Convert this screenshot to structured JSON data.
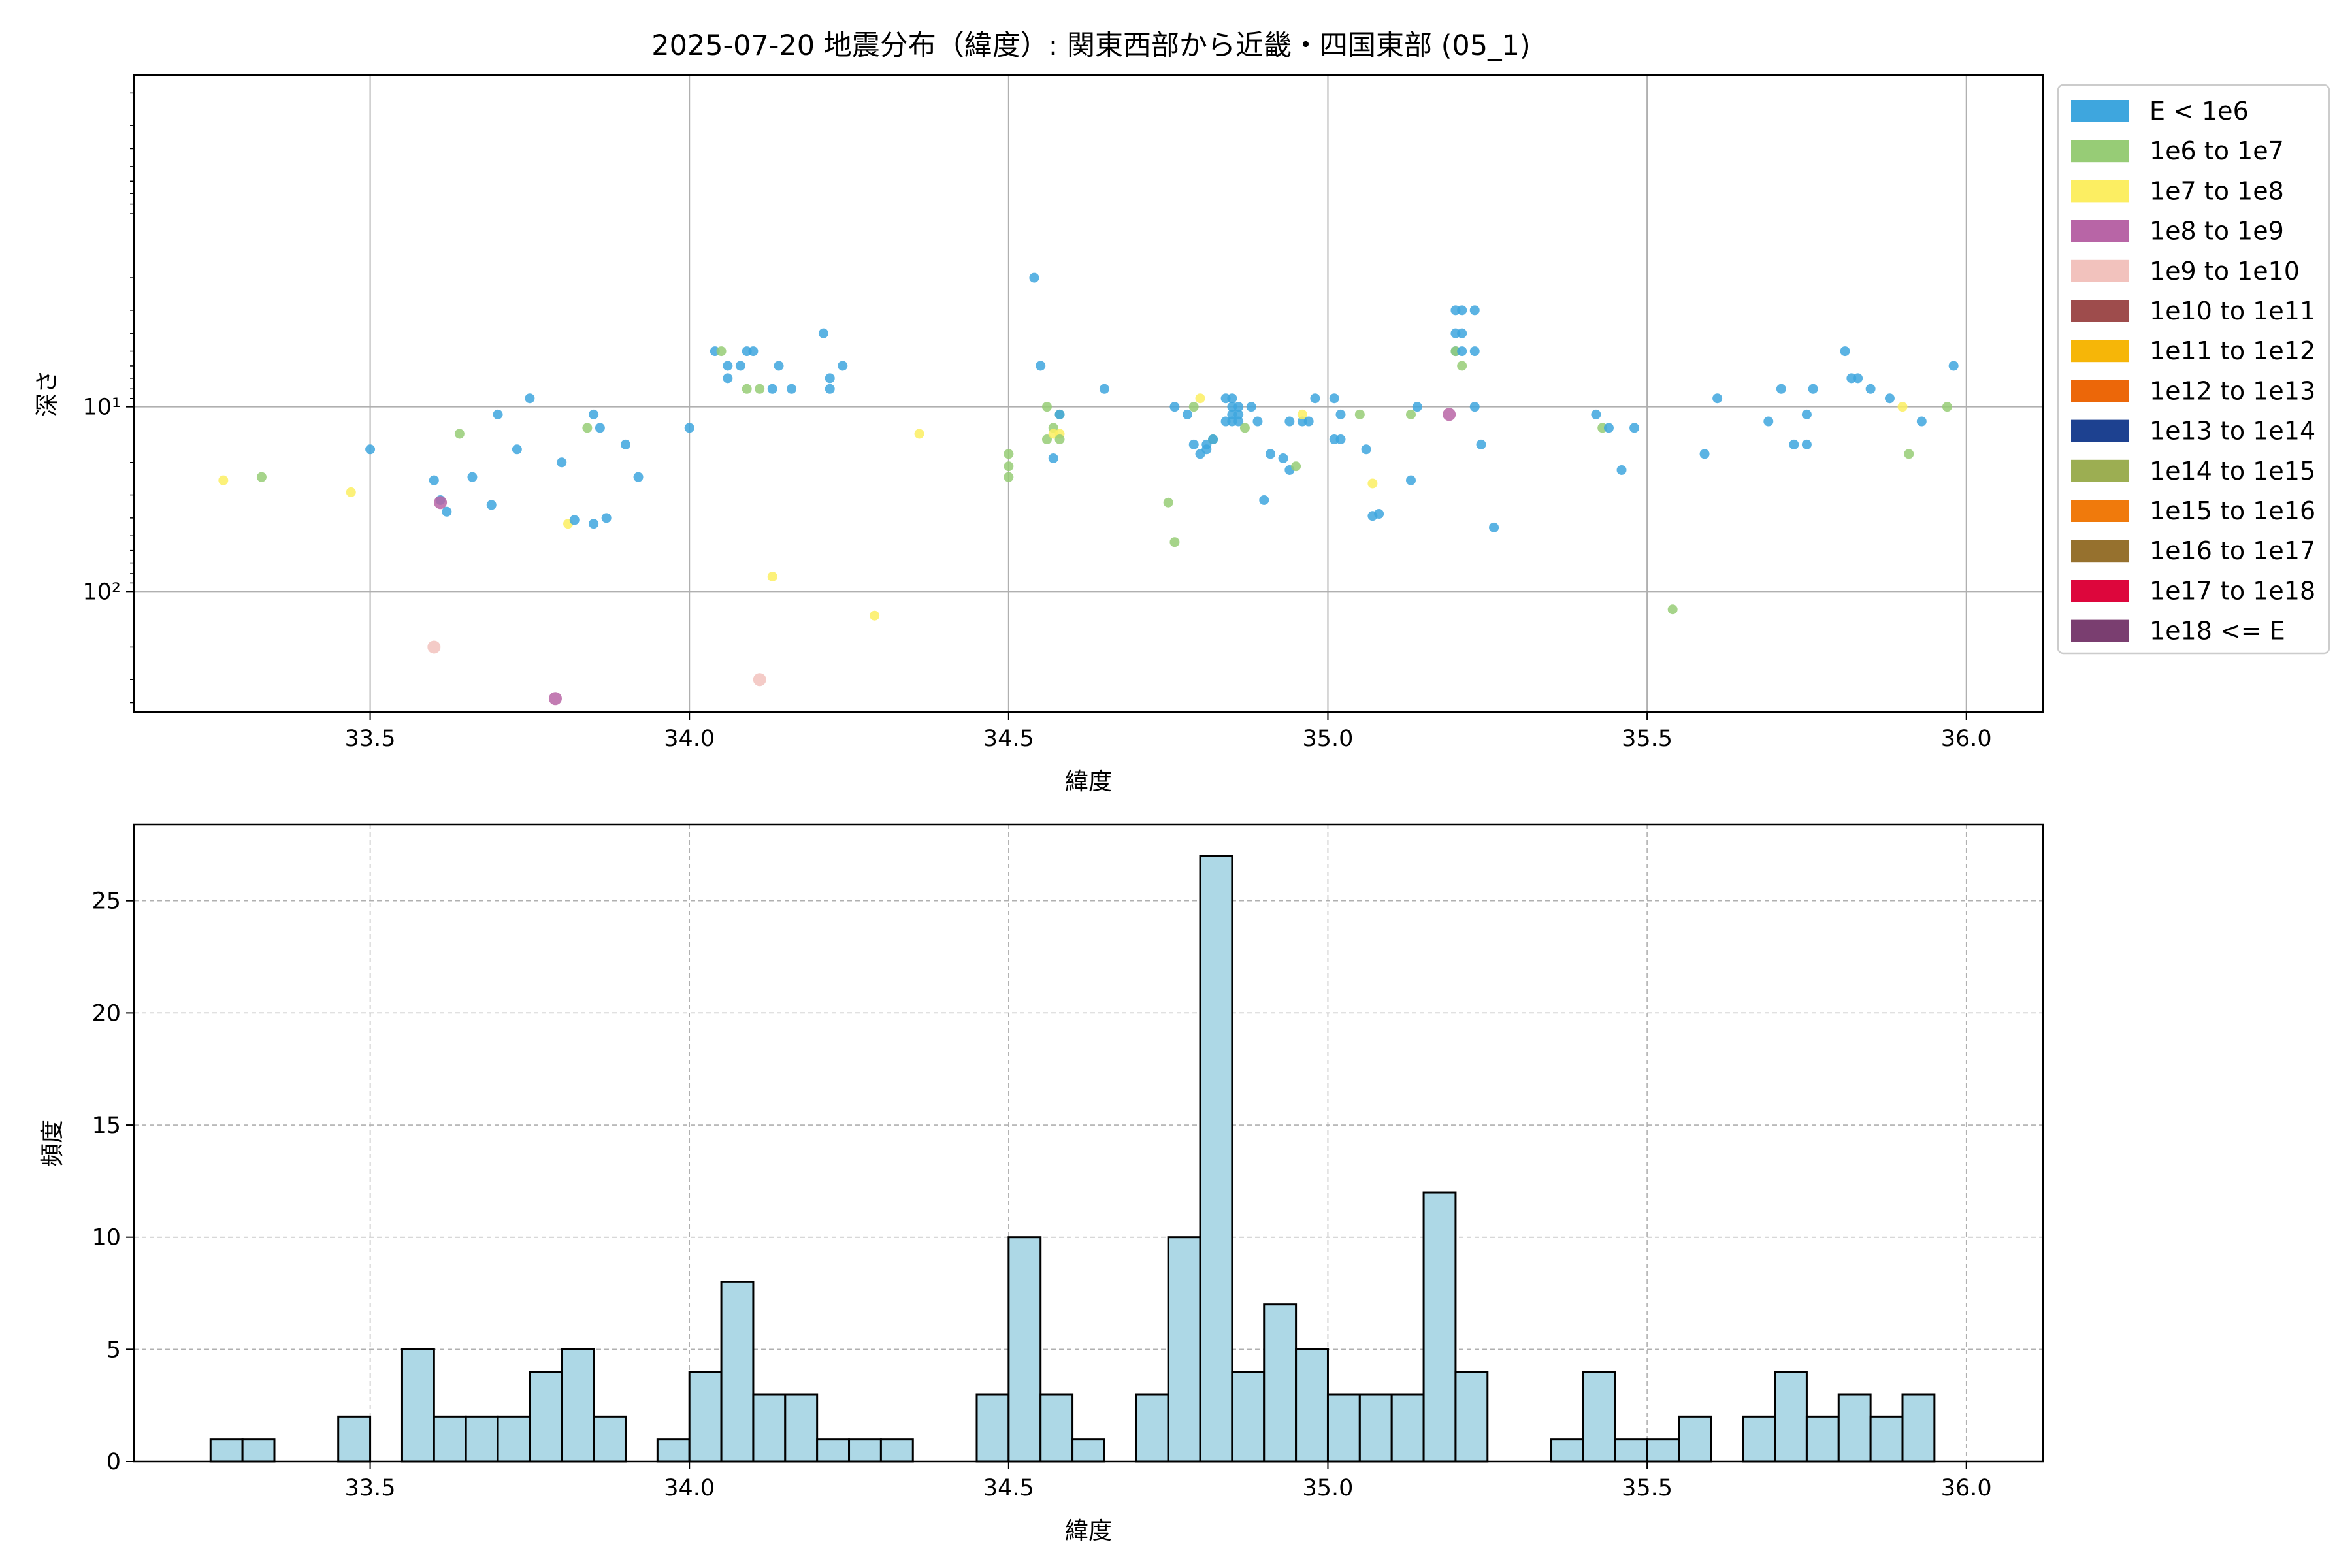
{
  "figure": {
    "title": "2025-07-20 地震分布（緯度）: 関東西部から近畿・四国東部 (05_1)"
  },
  "chart_data": [
    {
      "type": "scatter",
      "xlabel": "緯度",
      "ylabel": "深さ",
      "xlim": [
        33.13,
        36.12
      ],
      "ylim": [
        450,
        0.16
      ],
      "y_scale": "log",
      "y_inverted": true,
      "grid": true,
      "x_ticks": [
        33.5,
        34.0,
        34.5,
        35.0,
        35.5,
        36.0
      ],
      "x_tick_labels": [
        "33.5",
        "34.0",
        "34.5",
        "35.0",
        "35.5",
        "36.0"
      ],
      "y_ticks": [
        10,
        100
      ],
      "y_tick_labels": [
        "10¹",
        "10²"
      ],
      "legend_position": "outside-right",
      "legend": [
        {
          "label": "E < 1e6",
          "color": "#3ea6de"
        },
        {
          "label": "1e6 to 1e7",
          "color": "#97cc76"
        },
        {
          "label": "1e7 to 1e8",
          "color": "#fcee62"
        },
        {
          "label": "1e8 to 1e9",
          "color": "#b865a6"
        },
        {
          "label": "1e9 to 1e10",
          "color": "#f2c2bd"
        },
        {
          "label": "1e10 to 1e11",
          "color": "#9e4c4c"
        },
        {
          "label": "1e11 to 1e12",
          "color": "#f6b608"
        },
        {
          "label": "1e12 to 1e13",
          "color": "#ec6709"
        },
        {
          "label": "1e13 to 1e14",
          "color": "#1d4190"
        },
        {
          "label": "1e14 to 1e15",
          "color": "#9cae52"
        },
        {
          "label": "1e15 to 1e16",
          "color": "#f07a0c"
        },
        {
          "label": "1e16 to 1e17",
          "color": "#96712e"
        },
        {
          "label": "1e17 to 1e18",
          "color": "#dd063c"
        },
        {
          "label": "1e18 <= E",
          "color": "#7a3e70"
        }
      ],
      "points": [
        [
          33.27,
          25,
          2
        ],
        [
          33.33,
          24,
          1
        ],
        [
          33.47,
          29,
          2
        ],
        [
          33.5,
          17,
          0
        ],
        [
          33.6,
          25,
          0
        ],
        [
          33.61,
          32,
          0
        ],
        [
          33.61,
          33,
          3
        ],
        [
          33.62,
          37,
          0
        ],
        [
          33.64,
          14,
          1
        ],
        [
          33.66,
          24,
          0
        ],
        [
          33.69,
          34,
          0
        ],
        [
          33.7,
          11,
          0
        ],
        [
          33.73,
          17,
          0
        ],
        [
          33.75,
          9,
          0
        ],
        [
          33.8,
          20,
          0
        ],
        [
          33.81,
          43,
          2
        ],
        [
          33.82,
          41,
          0
        ],
        [
          33.84,
          13,
          1
        ],
        [
          33.85,
          11,
          0
        ],
        [
          33.85,
          43,
          0
        ],
        [
          33.86,
          13,
          0
        ],
        [
          33.87,
          40,
          0
        ],
        [
          33.9,
          16,
          0
        ],
        [
          33.92,
          24,
          0
        ],
        [
          34.0,
          13,
          0
        ],
        [
          34.04,
          5,
          0
        ],
        [
          34.05,
          5,
          1
        ],
        [
          34.06,
          6,
          0
        ],
        [
          34.06,
          7,
          0
        ],
        [
          34.08,
          6,
          0
        ],
        [
          34.09,
          5,
          0
        ],
        [
          34.09,
          8,
          1
        ],
        [
          34.1,
          5,
          0
        ],
        [
          34.11,
          8,
          1
        ],
        [
          34.13,
          8,
          0
        ],
        [
          34.14,
          6,
          0
        ],
        [
          34.16,
          8,
          0
        ],
        [
          34.21,
          4,
          0
        ],
        [
          34.22,
          7,
          0
        ],
        [
          34.22,
          8,
          0
        ],
        [
          34.24,
          6,
          0
        ],
        [
          34.36,
          14,
          2
        ],
        [
          34.5,
          18,
          1
        ],
        [
          34.5,
          21,
          1
        ],
        [
          34.5,
          24,
          1
        ],
        [
          34.54,
          2,
          0
        ],
        [
          34.55,
          6,
          0
        ],
        [
          34.56,
          10,
          1
        ],
        [
          34.56,
          15,
          1
        ],
        [
          34.57,
          13,
          1
        ],
        [
          34.57,
          14,
          2
        ],
        [
          34.57,
          19,
          0
        ],
        [
          34.58,
          11,
          1
        ],
        [
          34.58,
          11,
          0
        ],
        [
          34.58,
          14,
          2
        ],
        [
          34.58,
          15,
          1
        ],
        [
          34.65,
          8,
          0
        ],
        [
          34.75,
          33,
          1
        ],
        [
          34.76,
          10,
          0
        ],
        [
          34.76,
          54,
          1
        ],
        [
          34.78,
          11,
          0
        ],
        [
          34.79,
          16,
          0
        ],
        [
          34.79,
          10,
          1
        ],
        [
          34.8,
          9,
          2
        ],
        [
          34.8,
          18,
          0
        ],
        [
          34.81,
          17,
          0
        ],
        [
          34.81,
          16,
          0
        ],
        [
          34.82,
          15,
          1
        ],
        [
          34.82,
          15,
          0
        ],
        [
          34.84,
          12,
          0
        ],
        [
          34.84,
          9,
          0
        ],
        [
          34.85,
          9,
          0
        ],
        [
          34.85,
          10,
          0
        ],
        [
          34.85,
          11,
          0
        ],
        [
          34.85,
          12,
          0
        ],
        [
          34.86,
          10,
          0
        ],
        [
          34.86,
          11,
          0
        ],
        [
          34.86,
          12,
          0
        ],
        [
          34.87,
          13,
          1
        ],
        [
          34.88,
          10,
          0
        ],
        [
          34.89,
          12,
          0
        ],
        [
          34.9,
          32,
          0
        ],
        [
          34.91,
          18,
          0
        ],
        [
          34.93,
          19,
          0
        ],
        [
          34.94,
          12,
          0
        ],
        [
          34.94,
          22,
          0
        ],
        [
          34.95,
          21,
          1
        ],
        [
          34.96,
          12,
          0
        ],
        [
          34.96,
          11,
          2
        ],
        [
          34.97,
          12,
          0
        ],
        [
          34.98,
          9,
          0
        ],
        [
          35.01,
          9,
          0
        ],
        [
          35.01,
          15,
          0
        ],
        [
          35.02,
          11,
          0
        ],
        [
          35.02,
          15,
          0
        ],
        [
          35.05,
          11,
          1
        ],
        [
          35.06,
          17,
          0
        ],
        [
          35.07,
          26,
          2
        ],
        [
          35.07,
          39,
          0
        ],
        [
          35.08,
          38,
          0
        ],
        [
          35.13,
          11,
          1
        ],
        [
          35.13,
          25,
          0
        ],
        [
          35.14,
          10,
          0
        ],
        [
          35.19,
          11,
          3
        ],
        [
          35.2,
          3,
          0
        ],
        [
          35.2,
          4,
          0
        ],
        [
          35.2,
          5,
          0
        ],
        [
          35.2,
          5,
          1
        ],
        [
          35.21,
          3,
          0
        ],
        [
          35.21,
          4,
          0
        ],
        [
          35.21,
          5,
          0
        ],
        [
          35.21,
          6,
          1
        ],
        [
          35.23,
          3,
          0
        ],
        [
          35.23,
          5,
          0
        ],
        [
          35.23,
          10,
          0
        ],
        [
          35.24,
          16,
          0
        ],
        [
          35.26,
          45,
          0
        ],
        [
          35.42,
          11,
          0
        ],
        [
          35.43,
          13,
          1
        ],
        [
          35.44,
          13,
          0
        ],
        [
          35.46,
          22,
          0
        ],
        [
          35.48,
          13,
          0
        ],
        [
          35.54,
          125,
          1
        ],
        [
          35.59,
          18,
          0
        ],
        [
          35.61,
          9,
          0
        ],
        [
          35.69,
          12,
          0
        ],
        [
          35.71,
          8,
          0
        ],
        [
          35.73,
          16,
          0
        ],
        [
          35.75,
          16,
          0
        ],
        [
          35.75,
          11,
          0
        ],
        [
          35.76,
          8,
          0
        ],
        [
          35.81,
          5,
          0
        ],
        [
          35.82,
          7,
          0
        ],
        [
          35.83,
          7,
          0
        ],
        [
          35.85,
          8,
          0
        ],
        [
          35.88,
          9,
          0
        ],
        [
          35.9,
          10,
          2
        ],
        [
          35.91,
          18,
          1
        ],
        [
          35.93,
          12,
          0
        ],
        [
          35.97,
          10,
          1
        ],
        [
          35.98,
          6,
          0
        ],
        [
          33.6,
          200,
          4
        ],
        [
          33.79,
          380,
          3
        ],
        [
          34.11,
          300,
          4
        ],
        [
          34.13,
          83,
          2
        ],
        [
          34.29,
          135,
          2
        ]
      ]
    },
    {
      "type": "bar",
      "xlabel": "緯度",
      "ylabel": "頻度",
      "xlim": [
        33.13,
        36.12
      ],
      "ylim": [
        0,
        28.4
      ],
      "grid": true,
      "grid_style": "dashed",
      "bar_color": "#add8e6",
      "bin_width": 0.05,
      "x_ticks": [
        33.5,
        34.0,
        34.5,
        35.0,
        35.5,
        36.0
      ],
      "x_tick_labels": [
        "33.5",
        "34.0",
        "34.5",
        "35.0",
        "35.5",
        "36.0"
      ],
      "y_ticks": [
        0,
        5,
        10,
        15,
        20,
        25
      ],
      "y_tick_labels": [
        "0",
        "5",
        "10",
        "15",
        "20",
        "25"
      ],
      "bins": [
        [
          33.275,
          1
        ],
        [
          33.325,
          1
        ],
        [
          33.475,
          2
        ],
        [
          33.575,
          5
        ],
        [
          33.625,
          2
        ],
        [
          33.675,
          2
        ],
        [
          33.725,
          2
        ],
        [
          33.775,
          4
        ],
        [
          33.825,
          5
        ],
        [
          33.875,
          2
        ],
        [
          33.975,
          1
        ],
        [
          34.025,
          4
        ],
        [
          34.075,
          8
        ],
        [
          34.125,
          3
        ],
        [
          34.175,
          3
        ],
        [
          34.225,
          1
        ],
        [
          34.275,
          1
        ],
        [
          34.325,
          1
        ],
        [
          34.475,
          3
        ],
        [
          34.525,
          10
        ],
        [
          34.575,
          3
        ],
        [
          34.625,
          1
        ],
        [
          34.725,
          3
        ],
        [
          34.775,
          10
        ],
        [
          34.825,
          27
        ],
        [
          34.875,
          4
        ],
        [
          34.925,
          7
        ],
        [
          34.975,
          5
        ],
        [
          35.025,
          3
        ],
        [
          35.075,
          3
        ],
        [
          35.125,
          3
        ],
        [
          35.175,
          12
        ],
        [
          35.225,
          4
        ],
        [
          35.375,
          1
        ],
        [
          35.425,
          4
        ],
        [
          35.475,
          1
        ],
        [
          35.525,
          1
        ],
        [
          35.575,
          2
        ],
        [
          35.675,
          2
        ],
        [
          35.725,
          4
        ],
        [
          35.775,
          2
        ],
        [
          35.825,
          3
        ],
        [
          35.875,
          2
        ],
        [
          35.925,
          3
        ]
      ]
    }
  ]
}
